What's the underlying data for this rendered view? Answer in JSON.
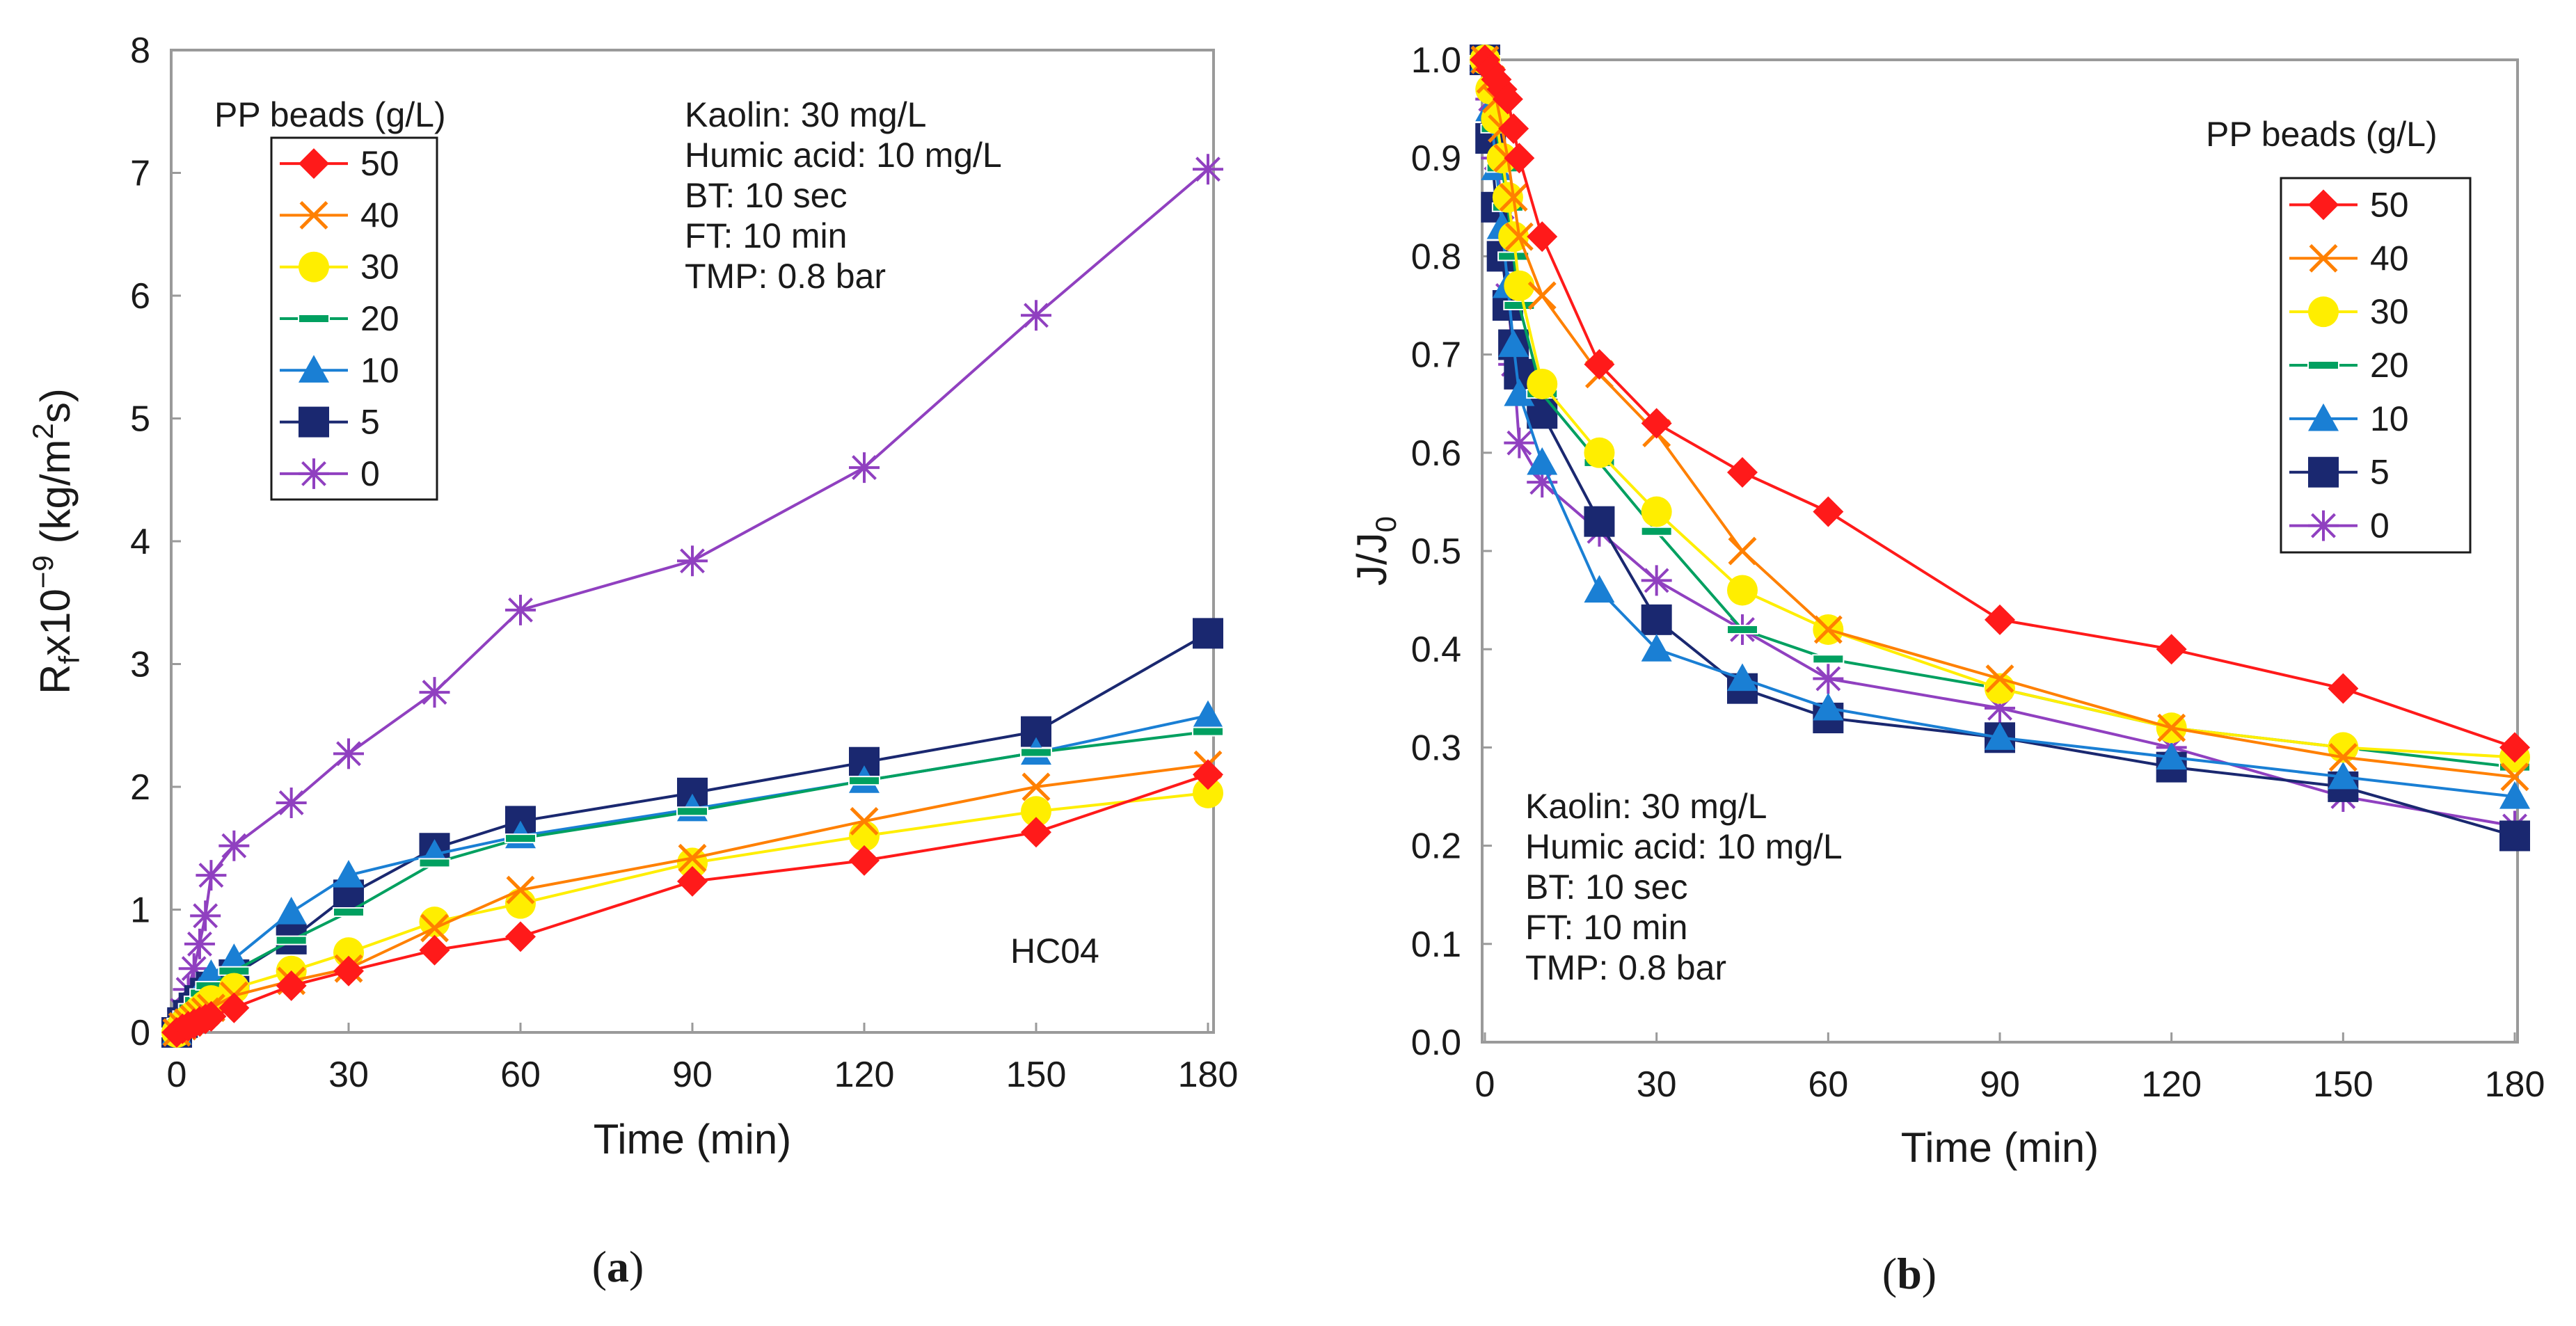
{
  "chart_data": [
    {
      "type": "line",
      "panel_label": "(a)",
      "panel_letter": "a",
      "xlabel": "Time (min)",
      "ylabel_main": "R",
      "ylabel_sub": "f",
      "ylabel_rest": "x10",
      "ylabel_exp": "−9",
      "ylabel_units_pre": " (kg/m",
      "ylabel_units_exp": "2",
      "ylabel_units_post": "s)",
      "xlim": [
        0,
        180
      ],
      "ylim": [
        0,
        8
      ],
      "x_ticks": [
        0,
        30,
        60,
        90,
        120,
        150,
        180
      ],
      "y_ticks": [
        0,
        1,
        2,
        3,
        4,
        5,
        6,
        7,
        8
      ],
      "y_tick_decimals": 0,
      "legend_title": "PP beads (g/L)",
      "legend_position": "top-left",
      "annotation_lines": [
        "Kaolin: 30 mg/L",
        "Humic acid: 10 mg/L",
        "BT: 10 sec",
        "FT: 10 min",
        "TMP: 0.8 bar"
      ],
      "annotation_position": "top-center",
      "tag": "HC04",
      "series": [
        {
          "name": "50",
          "color": "#ff1a1a",
          "marker": "diamond",
          "x": [
            0,
            1,
            2,
            3,
            4,
            5,
            6,
            10,
            20,
            30,
            45,
            60,
            90,
            120,
            150,
            180
          ],
          "y": [
            0,
            0.03,
            0.05,
            0.07,
            0.09,
            0.11,
            0.13,
            0.2,
            0.38,
            0.5,
            0.67,
            0.78,
            1.23,
            1.4,
            1.63,
            2.1
          ]
        },
        {
          "name": "40",
          "color": "#ff8000",
          "marker": "x",
          "x": [
            0,
            1,
            2,
            3,
            4,
            5,
            6,
            10,
            20,
            30,
            45,
            60,
            90,
            120,
            150,
            180
          ],
          "y": [
            0,
            0.05,
            0.08,
            0.11,
            0.14,
            0.17,
            0.2,
            0.3,
            0.42,
            0.52,
            0.85,
            1.16,
            1.42,
            1.72,
            2.0,
            2.18
          ]
        },
        {
          "name": "30",
          "color": "#ffee00",
          "marker": "circle",
          "x": [
            0,
            1,
            2,
            3,
            4,
            5,
            6,
            10,
            20,
            30,
            45,
            60,
            90,
            120,
            150,
            180
          ],
          "y": [
            0,
            0.06,
            0.1,
            0.14,
            0.18,
            0.22,
            0.26,
            0.36,
            0.5,
            0.65,
            0.9,
            1.05,
            1.38,
            1.6,
            1.8,
            1.95
          ]
        },
        {
          "name": "20",
          "color": "#00a060",
          "marker": "dash",
          "x": [
            0,
            1,
            2,
            3,
            4,
            5,
            6,
            10,
            20,
            30,
            45,
            60,
            90,
            120,
            150,
            180
          ],
          "y": [
            0,
            0.08,
            0.14,
            0.2,
            0.26,
            0.32,
            0.38,
            0.5,
            0.75,
            0.98,
            1.38,
            1.58,
            1.8,
            2.05,
            2.28,
            2.45
          ]
        },
        {
          "name": "10",
          "color": "#1a7fd4",
          "marker": "triangle",
          "x": [
            0,
            1,
            2,
            3,
            4,
            5,
            6,
            10,
            20,
            30,
            45,
            60,
            90,
            120,
            150,
            180
          ],
          "y": [
            0,
            0.1,
            0.17,
            0.25,
            0.33,
            0.4,
            0.47,
            0.6,
            0.98,
            1.28,
            1.45,
            1.6,
            1.82,
            2.05,
            2.28,
            2.58
          ]
        },
        {
          "name": "5",
          "color": "#1a2870",
          "marker": "square",
          "x": [
            0,
            1,
            2,
            3,
            4,
            5,
            6,
            10,
            20,
            30,
            45,
            60,
            90,
            120,
            150,
            180
          ],
          "y": [
            0,
            0.08,
            0.14,
            0.2,
            0.26,
            0.32,
            0.37,
            0.47,
            0.76,
            1.12,
            1.5,
            1.72,
            1.95,
            2.2,
            2.45,
            3.25
          ]
        },
        {
          "name": "0",
          "color": "#9040c0",
          "marker": "star",
          "x": [
            0,
            1,
            2,
            3,
            4,
            5,
            6,
            10,
            20,
            30,
            45,
            60,
            90,
            120,
            150,
            180
          ],
          "y": [
            0,
            0.18,
            0.35,
            0.52,
            0.72,
            0.95,
            1.28,
            1.52,
            1.87,
            2.27,
            2.77,
            3.44,
            3.84,
            4.6,
            5.84,
            7.03
          ]
        }
      ]
    },
    {
      "type": "line",
      "panel_label": "(b)",
      "panel_letter": "b",
      "xlabel": "Time (min)",
      "ylabel_main": "J/J",
      "ylabel_sub": "0",
      "xlim": [
        0,
        180
      ],
      "ylim": [
        0.0,
        1.0
      ],
      "x_ticks": [
        0,
        30,
        60,
        90,
        120,
        150,
        180
      ],
      "y_ticks": [
        0.0,
        0.1,
        0.2,
        0.3,
        0.4,
        0.5,
        0.6,
        0.7,
        0.8,
        0.9,
        1.0
      ],
      "y_tick_decimals": 1,
      "legend_title": "PP beads (g/L)",
      "legend_position": "top-right",
      "annotation_lines": [
        "Kaolin: 30 mg/L",
        "Humic acid: 10 mg/L",
        "BT: 10 sec",
        "FT: 10 min",
        "TMP: 0.8 bar"
      ],
      "annotation_position": "bottom-left",
      "series": [
        {
          "name": "50",
          "color": "#ff1a1a",
          "marker": "diamond",
          "x": [
            0,
            1,
            2,
            3,
            4,
            5,
            6,
            10,
            20,
            30,
            45,
            60,
            90,
            120,
            150,
            180
          ],
          "y": [
            1.0,
            0.99,
            0.98,
            0.97,
            0.96,
            0.93,
            0.9,
            0.82,
            0.69,
            0.63,
            0.58,
            0.54,
            0.43,
            0.4,
            0.36,
            0.3
          ]
        },
        {
          "name": "40",
          "color": "#ff8000",
          "marker": "x",
          "x": [
            0,
            1,
            2,
            3,
            4,
            5,
            6,
            10,
            20,
            30,
            45,
            60,
            90,
            120,
            150,
            180
          ],
          "y": [
            1.0,
            0.98,
            0.96,
            0.93,
            0.9,
            0.86,
            0.82,
            0.76,
            0.68,
            0.62,
            0.5,
            0.42,
            0.37,
            0.32,
            0.29,
            0.27
          ]
        },
        {
          "name": "30",
          "color": "#ffee00",
          "marker": "circle",
          "x": [
            0,
            1,
            2,
            3,
            4,
            5,
            6,
            10,
            20,
            30,
            45,
            60,
            90,
            120,
            150,
            180
          ],
          "y": [
            1.0,
            0.97,
            0.94,
            0.9,
            0.86,
            0.82,
            0.77,
            0.67,
            0.6,
            0.54,
            0.46,
            0.42,
            0.36,
            0.32,
            0.3,
            0.29
          ]
        },
        {
          "name": "20",
          "color": "#00a060",
          "marker": "dash",
          "x": [
            0,
            1,
            2,
            3,
            4,
            5,
            6,
            10,
            20,
            30,
            45,
            60,
            90,
            120,
            150,
            180
          ],
          "y": [
            1.0,
            0.97,
            0.93,
            0.89,
            0.85,
            0.8,
            0.75,
            0.66,
            0.59,
            0.52,
            0.42,
            0.39,
            0.36,
            0.32,
            0.3,
            0.28
          ]
        },
        {
          "name": "10",
          "color": "#1a7fd4",
          "marker": "triangle",
          "x": [
            0,
            1,
            2,
            3,
            4,
            5,
            6,
            10,
            20,
            30,
            45,
            60,
            90,
            120,
            150,
            180
          ],
          "y": [
            1.0,
            0.95,
            0.89,
            0.83,
            0.77,
            0.71,
            0.66,
            0.59,
            0.46,
            0.4,
            0.37,
            0.34,
            0.31,
            0.29,
            0.27,
            0.25
          ]
        },
        {
          "name": "5",
          "color": "#1a2870",
          "marker": "square",
          "x": [
            0,
            1,
            2,
            3,
            4,
            5,
            6,
            10,
            20,
            30,
            45,
            60,
            90,
            120,
            150,
            180
          ],
          "y": [
            1.0,
            0.92,
            0.85,
            0.8,
            0.75,
            0.71,
            0.68,
            0.64,
            0.53,
            0.43,
            0.36,
            0.33,
            0.31,
            0.28,
            0.26,
            0.21
          ]
        },
        {
          "name": "0",
          "color": "#9040c0",
          "marker": "star",
          "x": [
            0,
            1,
            2,
            3,
            4,
            5,
            6,
            10,
            20,
            30,
            45,
            60,
            90,
            120,
            150,
            180
          ],
          "y": [
            1.0,
            0.96,
            0.9,
            0.85,
            0.76,
            0.69,
            0.61,
            0.57,
            0.52,
            0.47,
            0.42,
            0.37,
            0.34,
            0.3,
            0.25,
            0.22
          ]
        }
      ]
    }
  ]
}
